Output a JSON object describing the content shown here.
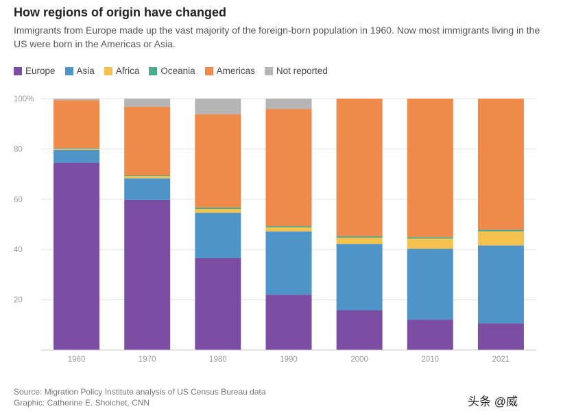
{
  "header": {
    "title": "How regions of origin have changed",
    "subtitle": "Immigrants from Europe made up the vast majority of the foreign-born population in 1960. Now most immigrants living in the US were born in the Americas or Asia."
  },
  "legend": [
    {
      "label": "Europe",
      "color": "#7b4ea3"
    },
    {
      "label": "Asia",
      "color": "#4f94c8"
    },
    {
      "label": "Africa",
      "color": "#f4c24d"
    },
    {
      "label": "Oceania",
      "color": "#4daa8f"
    },
    {
      "label": "Americas",
      "color": "#f08a4b"
    },
    {
      "label": "Not reported",
      "color": "#b5b5b5"
    }
  ],
  "source": {
    "line1": "Source: Migration Policy Institute analysis of US Census Bureau data",
    "line2": "Graphic: Catherine E. Shoichet, CNN"
  },
  "watermark": "头条 @威",
  "chart_data": {
    "type": "bar",
    "stacked": true,
    "categories": [
      "1960",
      "1970",
      "1980",
      "1990",
      "2000",
      "2010",
      "2021"
    ],
    "y_ticks": [
      "20",
      "40",
      "60",
      "80",
      "100%"
    ],
    "ylim": [
      0,
      100
    ],
    "grid": true,
    "series": [
      {
        "name": "Europe",
        "color": "#7b4ea3",
        "values": [
          74.5,
          59.7,
          36.6,
          22.0,
          15.8,
          12.1,
          10.6
        ]
      },
      {
        "name": "Asia",
        "color": "#4f94c8",
        "values": [
          5.1,
          8.6,
          18.0,
          25.2,
          26.4,
          28.2,
          31.0
        ]
      },
      {
        "name": "Africa",
        "color": "#f4c24d",
        "values": [
          0.4,
          0.9,
          1.5,
          1.6,
          2.5,
          4.0,
          5.6
        ]
      },
      {
        "name": "Oceania",
        "color": "#4daa8f",
        "values": [
          0.3,
          0.3,
          0.6,
          0.5,
          0.6,
          0.6,
          0.6
        ]
      },
      {
        "name": "Americas",
        "color": "#f08a4b",
        "values": [
          19.1,
          27.3,
          37.1,
          46.6,
          54.7,
          55.1,
          52.2
        ]
      },
      {
        "name": "Not reported",
        "color": "#b5b5b5",
        "values": [
          0.6,
          3.2,
          6.2,
          4.1,
          0,
          0,
          0
        ]
      }
    ]
  }
}
